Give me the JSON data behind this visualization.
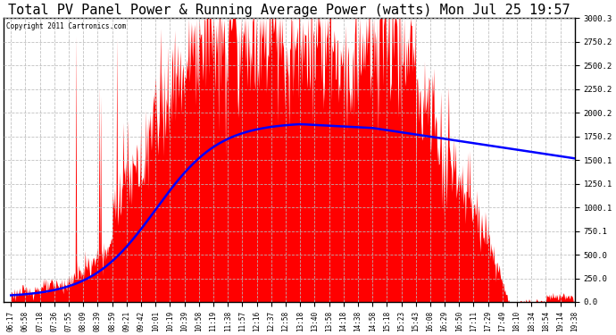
{
  "title": "Total PV Panel Power & Running Average Power (watts) Mon Jul 25 19:57",
  "copyright": "Copyright 2011 Cartronics.com",
  "ylim": [
    0,
    3000.3
  ],
  "ytick_vals": [
    0.0,
    250.0,
    500.0,
    750.1,
    1000.1,
    1250.1,
    1500.1,
    1750.2,
    2000.2,
    2250.2,
    2500.2,
    2750.2,
    3000.3
  ],
  "ytick_labels": [
    "0.0",
    "250.0",
    "500.0",
    "750.1",
    "1000.1",
    "1250.1",
    "1500.1",
    "1750.2",
    "2000.2",
    "2250.2",
    "2500.2",
    "2750.2",
    "3000.3"
  ],
  "background_color": "#ffffff",
  "grid_color": "#bbbbbb",
  "bar_color": "#ff0000",
  "line_color": "#0000ff",
  "title_fontsize": 11,
  "x_labels": [
    "06:17",
    "06:58",
    "07:18",
    "07:36",
    "07:55",
    "08:09",
    "08:39",
    "08:59",
    "09:21",
    "09:42",
    "10:01",
    "10:19",
    "10:39",
    "10:58",
    "11:19",
    "11:38",
    "11:57",
    "12:16",
    "12:37",
    "12:58",
    "13:18",
    "13:40",
    "13:58",
    "14:18",
    "14:38",
    "14:58",
    "15:18",
    "15:23",
    "15:43",
    "16:08",
    "16:29",
    "16:50",
    "17:11",
    "17:29",
    "17:49",
    "18:10",
    "18:34",
    "18:54",
    "19:14",
    "19:38"
  ]
}
